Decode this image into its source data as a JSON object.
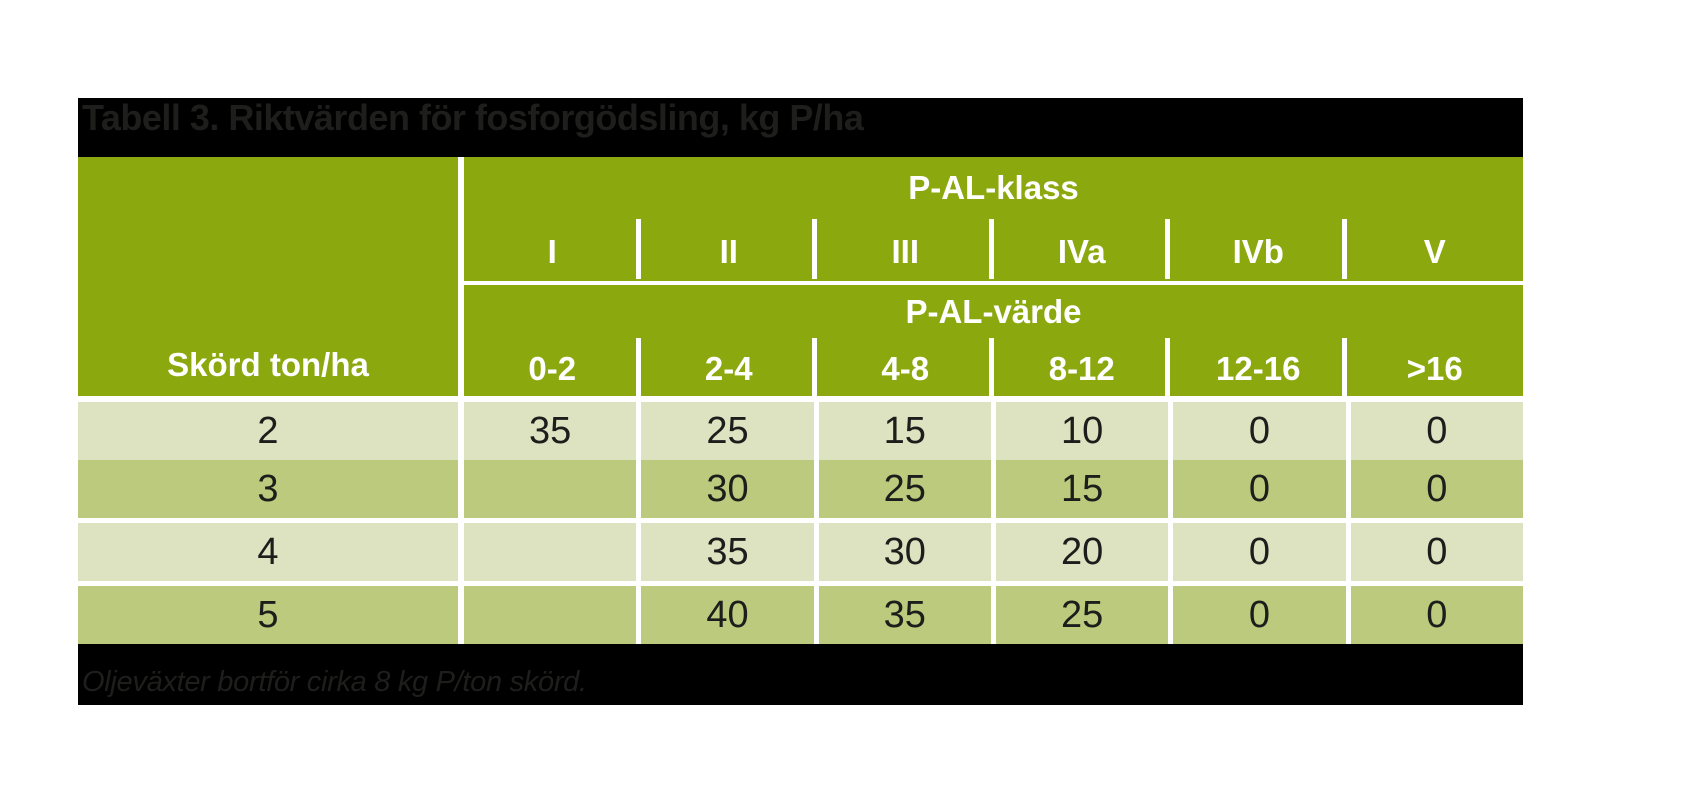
{
  "title": "Tabell 3. Riktvärden för fosforgödsling, kg P/ha",
  "footnote": "Oljeväxter bortför cirka 8 kg P/ton skörd.",
  "colors": {
    "header_green": "#8ba90f",
    "row_light": "#dde2c1",
    "row_dark": "#bcca7d",
    "bar_black": "#000000",
    "bar_text": "#1e1e1c",
    "cell_text": "#1d1d1b",
    "divider_white": "#ffffff"
  },
  "table": {
    "class_group_header": "P-AL-klass",
    "value_group_header": "P-AL-värde",
    "yield_header": "Skörd ton/ha",
    "classes": [
      "I",
      "II",
      "III",
      "IVa",
      "IVb",
      "V"
    ],
    "value_ranges": [
      "0-2",
      "2-4",
      "4-8",
      "8-12",
      "12-16",
      ">16"
    ],
    "rows": [
      {
        "yield": "2",
        "values": [
          "35",
          "25",
          "15",
          "10",
          "0",
          "0"
        ]
      },
      {
        "yield": "3",
        "values": [
          "",
          "30",
          "25",
          "15",
          "0",
          "0"
        ]
      },
      {
        "yield": "4",
        "values": [
          "",
          "35",
          "30",
          "20",
          "0",
          "0"
        ]
      },
      {
        "yield": "5",
        "values": [
          "",
          "40",
          "35",
          "25",
          "0",
          "0"
        ]
      }
    ]
  }
}
